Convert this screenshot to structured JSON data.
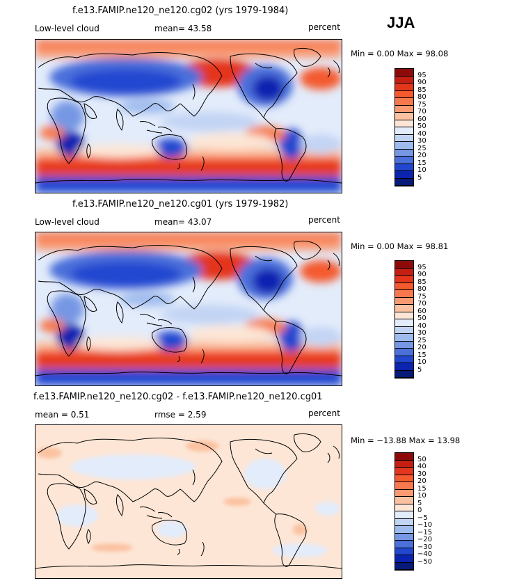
{
  "season": "JJA",
  "panels": [
    {
      "id": "p1",
      "title": "f.e13.FAMIP.ne120_ne120.cg02 (yrs 1979-1984)",
      "left_label": "Low-level cloud",
      "mid_label": "mean=  43.58",
      "units": "percent",
      "minmax": "Min =    0.00 Max =  98.08",
      "scale": "abs"
    },
    {
      "id": "p2",
      "title": "f.e13.FAMIP.ne120_ne120.cg01 (yrs 1979-1982)",
      "left_label": "Low-level cloud",
      "mid_label": "mean=  43.07",
      "units": "percent",
      "minmax": "Min =    0.00 Max =  98.81",
      "scale": "abs"
    },
    {
      "id": "p3",
      "title": "f.e13.FAMIP.ne120_ne120.cg02 - f.e13.FAMIP.ne120_ne120.cg01",
      "left_label": "mean =    0.51",
      "mid_label": "rmse =    2.59",
      "units": "percent",
      "minmax": "Min = −13.88 Max =  13.98",
      "scale": "diff"
    }
  ],
  "colorbars": {
    "abs": {
      "labels": [
        "95",
        "90",
        "85",
        "80",
        "75",
        "70",
        "60",
        "50",
        "40",
        "30",
        "25",
        "20",
        "15",
        "10",
        "5"
      ],
      "colors": [
        "#8c0a0a",
        "#c41f12",
        "#e4361c",
        "#f45a2e",
        "#f7784c",
        "#f99a73",
        "#fbc2a2",
        "#fde6d6",
        "#e3ecfb",
        "#c2d4f4",
        "#9ebbee",
        "#7697e4",
        "#4c70da",
        "#2146d0",
        "#0b24b0",
        "#061a7a"
      ]
    },
    "diff": {
      "labels": [
        "50",
        "40",
        "30",
        "20",
        "15",
        "10",
        "5",
        "0",
        "−5",
        "−10",
        "−15",
        "−20",
        "−30",
        "−40",
        "−50"
      ],
      "colors": [
        "#8c0a0a",
        "#c41f12",
        "#e4361c",
        "#f45a2e",
        "#f7784c",
        "#f99a73",
        "#fbc2a2",
        "#fde6d6",
        "#e3ecfb",
        "#c2d4f4",
        "#9ebbee",
        "#7697e4",
        "#4c70da",
        "#2146d0",
        "#0b24b0",
        "#061a7a"
      ]
    }
  }
}
